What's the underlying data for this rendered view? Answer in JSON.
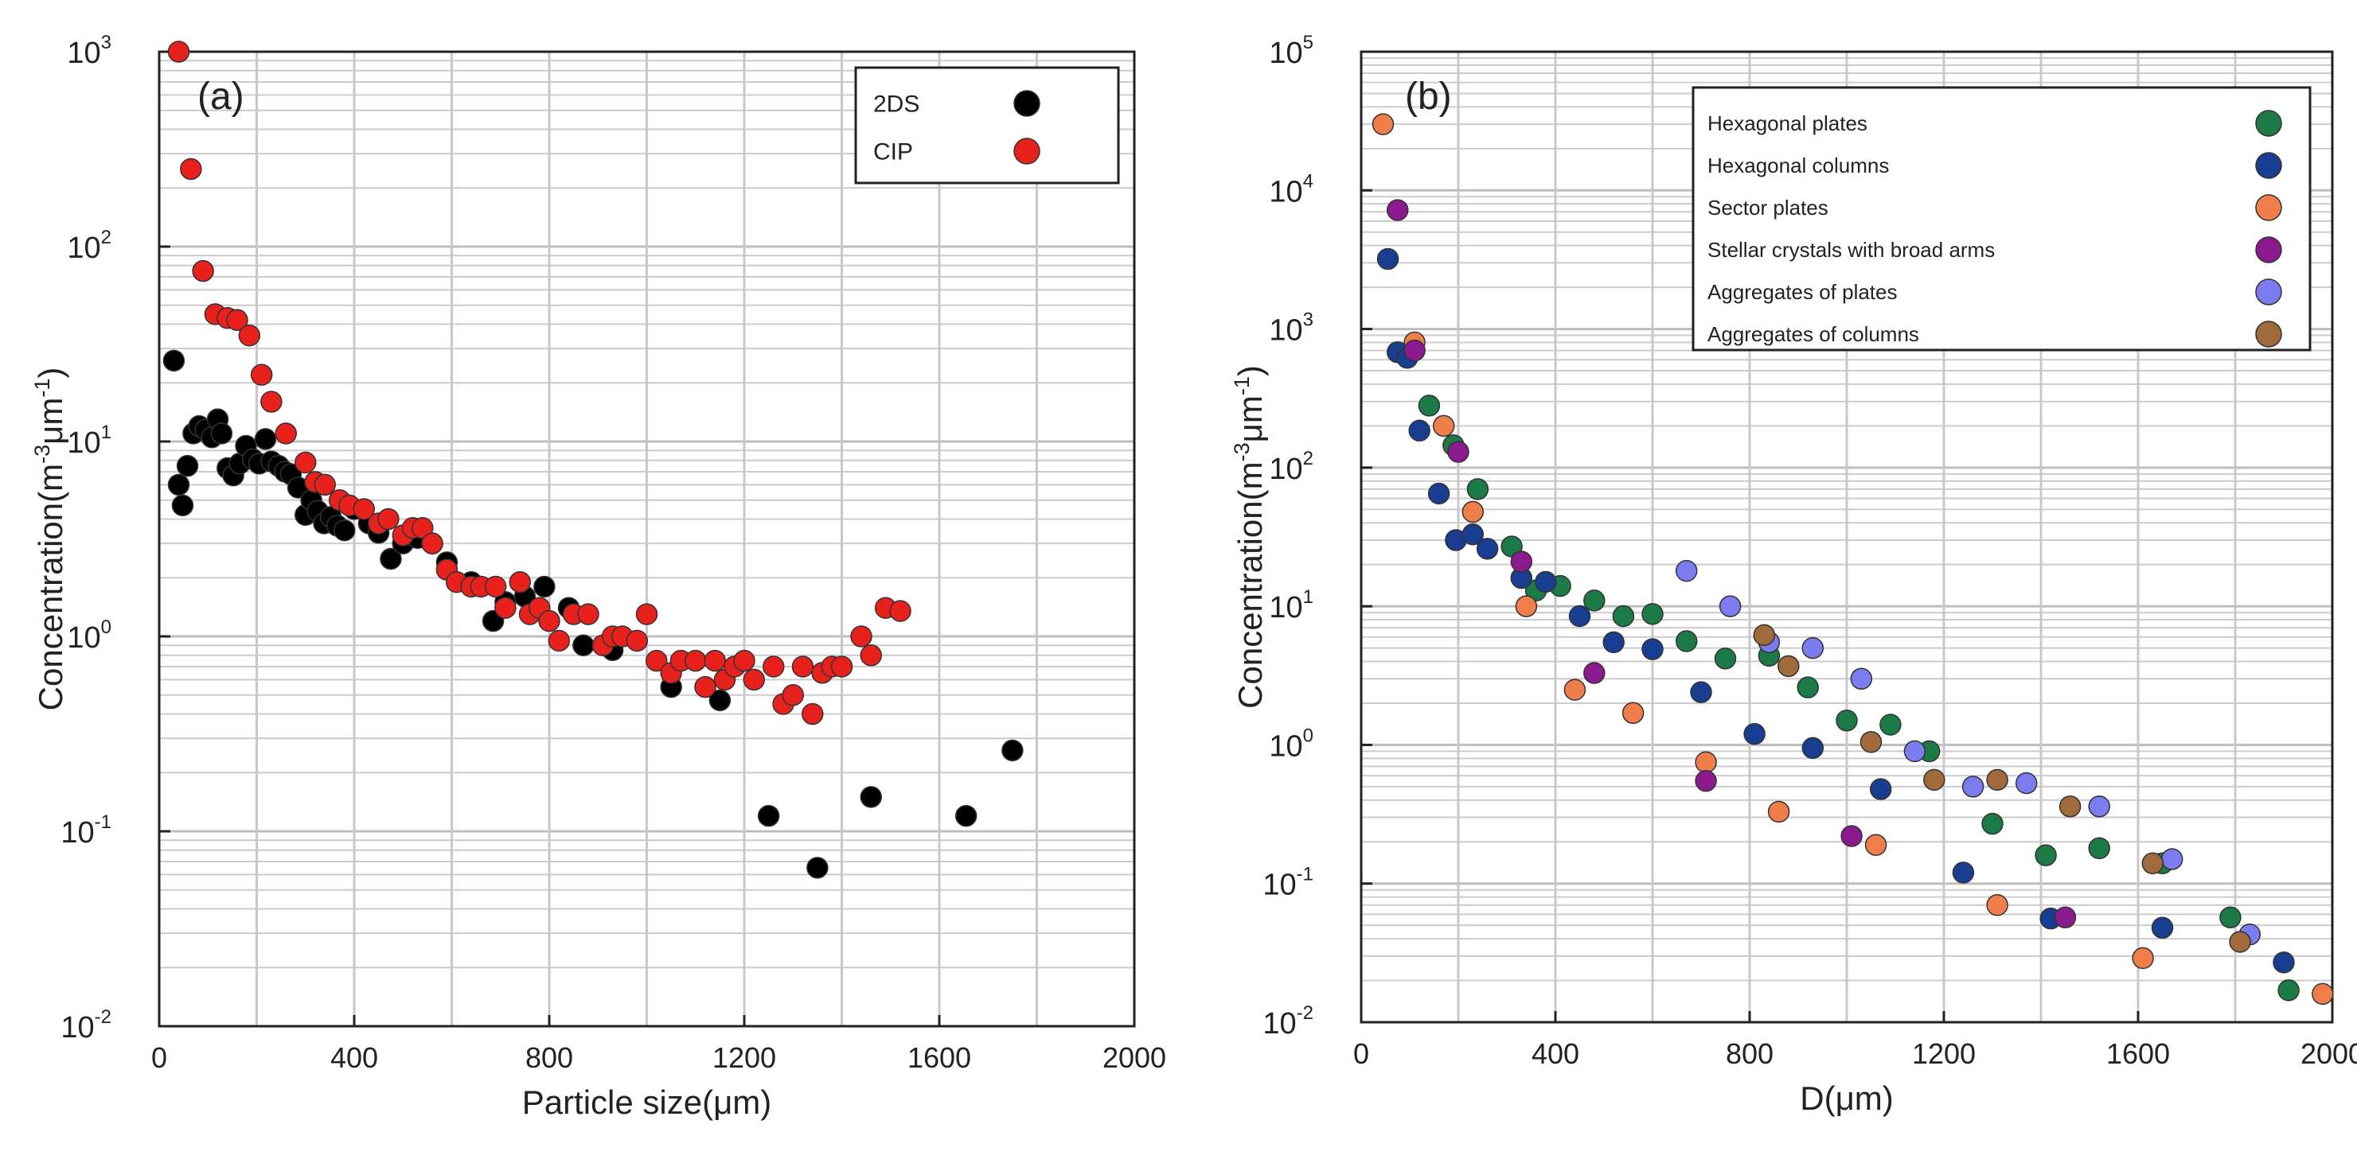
{
  "chart_data": [
    {
      "type": "scatter",
      "yscale": "log",
      "panel_label": "(a)",
      "xlabel": "Particle size(μm)",
      "ylabel_main": "Concentration(m",
      "ylabel_sup1": "-3",
      "ylabel_mid": "μm",
      "ylabel_sup2": "-1",
      "ylabel_end": ")",
      "xlim": [
        0,
        2000
      ],
      "ylim": [
        0.01,
        1000
      ],
      "xticks": [
        0,
        400,
        800,
        1200,
        1600,
        2000
      ],
      "xtick_labels": [
        "0",
        "400",
        "800",
        "1200",
        "1600",
        "2000"
      ],
      "yticks": [
        0.01,
        0.1,
        1,
        10,
        100,
        1000
      ],
      "ytick_base": "10",
      "ytick_exps": [
        "-2",
        "-1",
        "0",
        "1",
        "2",
        "3"
      ],
      "grid": true,
      "legend_position": "top-right",
      "series": [
        {
          "name": "2DS",
          "color": "#000000",
          "points": [
            [
              30,
              26
            ],
            [
              40,
              6
            ],
            [
              48,
              4.7
            ],
            [
              58,
              7.5
            ],
            [
              70,
              11
            ],
            [
              82,
              12
            ],
            [
              95,
              11.5
            ],
            [
              108,
              10.5
            ],
            [
              120,
              13
            ],
            [
              128,
              11
            ],
            [
              140,
              7.3
            ],
            [
              152,
              6.7
            ],
            [
              165,
              7.7
            ],
            [
              178,
              9.5
            ],
            [
              192,
              8.1
            ],
            [
              205,
              7.7
            ],
            [
              218,
              10.3
            ],
            [
              230,
              7.9
            ],
            [
              245,
              7.5
            ],
            [
              258,
              7.0
            ],
            [
              270,
              6.8
            ],
            [
              285,
              5.8
            ],
            [
              300,
              4.2
            ],
            [
              312,
              5.0
            ],
            [
              325,
              4.4
            ],
            [
              338,
              3.8
            ],
            [
              352,
              4.1
            ],
            [
              365,
              3.7
            ],
            [
              380,
              3.5
            ],
            [
              400,
              4.5
            ],
            [
              430,
              3.8
            ],
            [
              450,
              3.4
            ],
            [
              475,
              2.5
            ],
            [
              500,
              3.0
            ],
            [
              530,
              3.2
            ],
            [
              560,
              3.0
            ],
            [
              590,
              2.4
            ],
            [
              640,
              1.9
            ],
            [
              685,
              1.2
            ],
            [
              710,
              1.5
            ],
            [
              750,
              1.6
            ],
            [
              790,
              1.8
            ],
            [
              840,
              1.4
            ],
            [
              870,
              0.9
            ],
            [
              930,
              0.85
            ],
            [
              980,
              0.95
            ],
            [
              1050,
              0.55
            ],
            [
              1150,
              0.47
            ],
            [
              1250,
              0.12
            ],
            [
              1350,
              0.065
            ],
            [
              1460,
              0.15
            ],
            [
              1655,
              0.12
            ],
            [
              1750,
              0.26
            ]
          ]
        },
        {
          "name": "CIP",
          "color": "#e8211d",
          "points": [
            [
              40,
              1000
            ],
            [
              65,
              250
            ],
            [
              90,
              75
            ],
            [
              115,
              45
            ],
            [
              140,
              43
            ],
            [
              160,
              42
            ],
            [
              185,
              35
            ],
            [
              210,
              22
            ],
            [
              230,
              16
            ],
            [
              260,
              11
            ],
            [
              300,
              7.8
            ],
            [
              320,
              6.2
            ],
            [
              340,
              6.0
            ],
            [
              370,
              5.0
            ],
            [
              390,
              4.7
            ],
            [
              420,
              4.5
            ],
            [
              450,
              3.8
            ],
            [
              470,
              4.0
            ],
            [
              500,
              3.3
            ],
            [
              520,
              3.6
            ],
            [
              540,
              3.6
            ],
            [
              560,
              3.0
            ],
            [
              590,
              2.2
            ],
            [
              610,
              1.9
            ],
            [
              640,
              1.8
            ],
            [
              660,
              1.8
            ],
            [
              690,
              1.8
            ],
            [
              710,
              1.4
            ],
            [
              740,
              1.9
            ],
            [
              760,
              1.3
            ],
            [
              780,
              1.4
            ],
            [
              800,
              1.2
            ],
            [
              820,
              0.95
            ],
            [
              850,
              1.3
            ],
            [
              880,
              1.3
            ],
            [
              910,
              0.9
            ],
            [
              930,
              1.0
            ],
            [
              950,
              1.0
            ],
            [
              980,
              0.95
            ],
            [
              1000,
              1.3
            ],
            [
              1020,
              0.75
            ],
            [
              1050,
              0.65
            ],
            [
              1070,
              0.75
            ],
            [
              1100,
              0.75
            ],
            [
              1120,
              0.55
            ],
            [
              1140,
              0.75
            ],
            [
              1160,
              0.6
            ],
            [
              1180,
              0.7
            ],
            [
              1200,
              0.75
            ],
            [
              1220,
              0.6
            ],
            [
              1260,
              0.7
            ],
            [
              1280,
              0.45
            ],
            [
              1300,
              0.5
            ],
            [
              1320,
              0.7
            ],
            [
              1340,
              0.4
            ],
            [
              1360,
              0.65
            ],
            [
              1380,
              0.7
            ],
            [
              1400,
              0.7
            ],
            [
              1440,
              1.0
            ],
            [
              1460,
              0.8
            ],
            [
              1490,
              1.4
            ],
            [
              1520,
              1.35
            ]
          ]
        }
      ]
    },
    {
      "type": "scatter",
      "yscale": "log",
      "panel_label": "(b)",
      "xlabel": "D(μm)",
      "ylabel_main": "Concentration(m",
      "ylabel_sup1": "-3",
      "ylabel_mid": "μm",
      "ylabel_sup2": "-1",
      "ylabel_end": ")",
      "xlim": [
        0,
        2000
      ],
      "ylim": [
        0.01,
        100000
      ],
      "xticks": [
        0,
        400,
        800,
        1200,
        1600,
        2000
      ],
      "xtick_labels": [
        "0",
        "400",
        "800",
        "1200",
        "1600",
        "2000"
      ],
      "yticks": [
        0.01,
        0.1,
        1,
        10,
        100,
        1000,
        10000,
        100000
      ],
      "ytick_base": "10",
      "ytick_exps": [
        "-2",
        "-1",
        "0",
        "1",
        "2",
        "3",
        "4",
        "5"
      ],
      "grid": true,
      "legend_position": "top-right",
      "series": [
        {
          "name": "Hexagonal plates",
          "color": "#1b7a45",
          "points": [
            [
              140,
              280
            ],
            [
              190,
              145
            ],
            [
              240,
              70
            ],
            [
              310,
              27
            ],
            [
              360,
              13
            ],
            [
              410,
              14
            ],
            [
              480,
              11
            ],
            [
              540,
              8.5
            ],
            [
              600,
              8.8
            ],
            [
              670,
              5.6
            ],
            [
              750,
              4.2
            ],
            [
              840,
              4.4
            ],
            [
              920,
              2.6
            ],
            [
              1000,
              1.5
            ],
            [
              1090,
              1.4
            ],
            [
              1170,
              0.9
            ],
            [
              1300,
              0.27
            ],
            [
              1410,
              0.16
            ],
            [
              1520,
              0.18
            ],
            [
              1650,
              0.14
            ],
            [
              1790,
              0.057
            ],
            [
              1910,
              0.017
            ]
          ]
        },
        {
          "name": "Hexagonal columns",
          "color": "#183d91",
          "points": [
            [
              55,
              3200
            ],
            [
              75,
              680
            ],
            [
              95,
              620
            ],
            [
              120,
              185
            ],
            [
              160,
              65
            ],
            [
              195,
              30
            ],
            [
              230,
              33
            ],
            [
              260,
              26
            ],
            [
              330,
              16
            ],
            [
              380,
              15
            ],
            [
              450,
              8.5
            ],
            [
              520,
              5.5
            ],
            [
              600,
              4.9
            ],
            [
              700,
              2.4
            ],
            [
              810,
              1.2
            ],
            [
              930,
              0.95
            ],
            [
              1070,
              0.48
            ],
            [
              1240,
              0.12
            ],
            [
              1420,
              0.056
            ],
            [
              1650,
              0.048
            ],
            [
              1900,
              0.027
            ]
          ]
        },
        {
          "name": "Sector plates",
          "color": "#f07e4a",
          "points": [
            [
              45,
              30000
            ],
            [
              110,
              800
            ],
            [
              170,
              200
            ],
            [
              230,
              48
            ],
            [
              340,
              10
            ],
            [
              440,
              2.5
            ],
            [
              560,
              1.7
            ],
            [
              710,
              0.75
            ],
            [
              860,
              0.33
            ],
            [
              1060,
              0.19
            ],
            [
              1310,
              0.07
            ],
            [
              1610,
              0.029
            ],
            [
              1980,
              0.016
            ]
          ]
        },
        {
          "name": "Stellar crystals with broad arms",
          "color": "#8a1a8e",
          "points": [
            [
              75,
              7200
            ],
            [
              110,
              700
            ],
            [
              200,
              130
            ],
            [
              330,
              21
            ],
            [
              480,
              3.3
            ],
            [
              710,
              0.55
            ],
            [
              1010,
              0.22
            ],
            [
              1450,
              0.057
            ]
          ]
        },
        {
          "name": "Aggregates of plates",
          "color": "#7a7cf0",
          "points": [
            [
              670,
              18
            ],
            [
              760,
              10
            ],
            [
              840,
              5.5
            ],
            [
              930,
              5.0
            ],
            [
              1030,
              3.0
            ],
            [
              1140,
              0.9
            ],
            [
              1260,
              0.5
            ],
            [
              1370,
              0.53
            ],
            [
              1520,
              0.36
            ],
            [
              1670,
              0.15
            ],
            [
              1830,
              0.043
            ]
          ]
        },
        {
          "name": "Aggregates of columns",
          "color": "#a06a3c",
          "points": [
            [
              830,
              6.2
            ],
            [
              880,
              3.7
            ],
            [
              1050,
              1.05
            ],
            [
              1180,
              0.56
            ],
            [
              1310,
              0.56
            ],
            [
              1460,
              0.36
            ],
            [
              1630,
              0.14
            ],
            [
              1810,
              0.038
            ]
          ]
        }
      ]
    }
  ]
}
